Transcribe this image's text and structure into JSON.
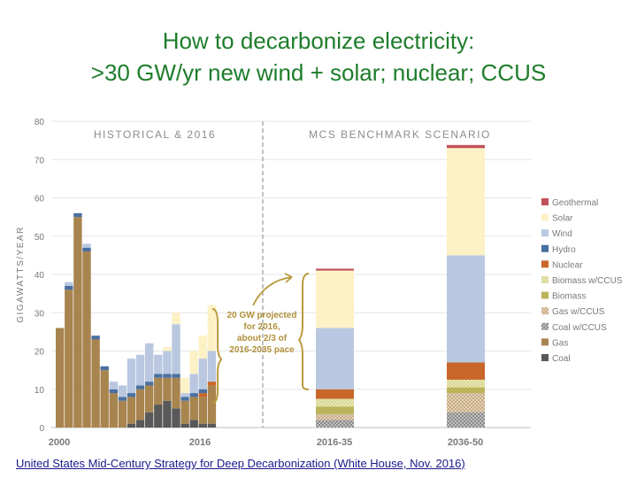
{
  "slide": {
    "title_line1": "How to decarbonize electricity:",
    "title_line2": ">30 GW/yr new wind + solar; nuclear; CCUS",
    "source": "United States Mid-Century Strategy for Deep Decarbonization (White House, Nov. 2016)"
  },
  "chart_data": {
    "type": "bar",
    "stacked": true,
    "ylabel": "GIGAWATTS/YEAR",
    "ylim": [
      0,
      80
    ],
    "yticks": [
      0,
      10,
      20,
      30,
      40,
      50,
      60,
      70,
      80
    ],
    "grid": true,
    "legend_position": "right",
    "section_labels": [
      "HISTORICAL & 2016",
      "MCS BENCHMARK SCENARIO"
    ],
    "annotation": [
      "20 GW projected",
      "for 2016,",
      "about 2/3 of",
      "2016-2035 pace"
    ],
    "x_tick_labels": [
      "2000",
      "2016",
      "2016-35",
      "2036-50"
    ],
    "historical": {
      "years": [
        1999,
        2000,
        2001,
        2002,
        2003,
        2004,
        2005,
        2006,
        2007,
        2008,
        2009,
        2010,
        2011,
        2012,
        2013,
        2014,
        2015,
        2016
      ],
      "series": [
        {
          "name": "Coal",
          "values": [
            0,
            0,
            0,
            0,
            0,
            0,
            0,
            0,
            1,
            2,
            4,
            6,
            7,
            5,
            1,
            2,
            1,
            1
          ]
        },
        {
          "name": "Gas",
          "values": [
            26,
            36,
            55,
            46,
            23,
            15,
            9,
            7,
            7,
            8,
            7,
            7,
            6,
            8,
            6,
            6,
            7,
            10
          ]
        },
        {
          "name": "Nuclear",
          "values": [
            0,
            0,
            0,
            0,
            0,
            0,
            0,
            0,
            0,
            0,
            0,
            0,
            0,
            0,
            0,
            0,
            1,
            1
          ]
        },
        {
          "name": "Hydro",
          "values": [
            0,
            1,
            1,
            1,
            1,
            1,
            1,
            1,
            1,
            1,
            1,
            1,
            1,
            1,
            1,
            1,
            1,
            0
          ]
        },
        {
          "name": "Wind",
          "values": [
            0,
            1,
            0,
            1,
            0,
            0,
            2,
            3,
            9,
            8,
            10,
            5,
            6,
            13,
            1,
            5,
            8,
            8
          ]
        },
        {
          "name": "Solar",
          "values": [
            0,
            0,
            0,
            0,
            0,
            0,
            0,
            0,
            0,
            0,
            0,
            0,
            1,
            3,
            4,
            6,
            6,
            12
          ]
        },
        {
          "name": "Geothermal",
          "values": [
            0,
            0,
            0,
            0,
            0,
            0,
            0,
            0,
            0,
            0,
            0,
            0,
            0,
            0,
            0,
            0,
            0,
            0
          ]
        }
      ]
    },
    "scenario": {
      "categories": [
        "2016-35",
        "2036-50"
      ],
      "series": [
        {
          "name": "Coal",
          "values": [
            0,
            0
          ]
        },
        {
          "name": "Gas",
          "values": [
            0,
            0
          ]
        },
        {
          "name": "Coal w/CCUS",
          "values": [
            2,
            4
          ]
        },
        {
          "name": "Gas w/CCUS",
          "values": [
            1.5,
            5
          ]
        },
        {
          "name": "Biomass",
          "values": [
            2,
            1.5
          ]
        },
        {
          "name": "Biomass w/CCUS",
          "values": [
            2,
            2
          ]
        },
        {
          "name": "Nuclear",
          "values": [
            2.5,
            4.5
          ]
        },
        {
          "name": "Hydro",
          "values": [
            0,
            0
          ]
        },
        {
          "name": "Wind",
          "values": [
            16,
            28
          ]
        },
        {
          "name": "Solar",
          "values": [
            15,
            28
          ]
        },
        {
          "name": "Geothermal",
          "values": [
            0.5,
            0.8
          ]
        }
      ]
    },
    "legend": [
      {
        "name": "Geothermal",
        "color": "#c0505b",
        "pattern": ""
      },
      {
        "name": "Solar",
        "color": "#fdf1c6",
        "pattern": ""
      },
      {
        "name": "Wind",
        "color": "#b9c8e0",
        "pattern": ""
      },
      {
        "name": "Hydro",
        "color": "#4a6fa0",
        "pattern": ""
      },
      {
        "name": "Nuclear",
        "color": "#c9662a",
        "pattern": ""
      },
      {
        "name": "Biomass w/CCUS",
        "color": "#d7d58a",
        "pattern": "check"
      },
      {
        "name": "Biomass",
        "color": "#bcb45a",
        "pattern": ""
      },
      {
        "name": "Gas w/CCUS",
        "color": "#c9ab82",
        "pattern": "check"
      },
      {
        "name": "Coal w/CCUS",
        "color": "#8a8a8a",
        "pattern": "check"
      },
      {
        "name": "Gas",
        "color": "#a8844f",
        "pattern": ""
      },
      {
        "name": "Coal",
        "color": "#595959",
        "pattern": ""
      }
    ]
  }
}
